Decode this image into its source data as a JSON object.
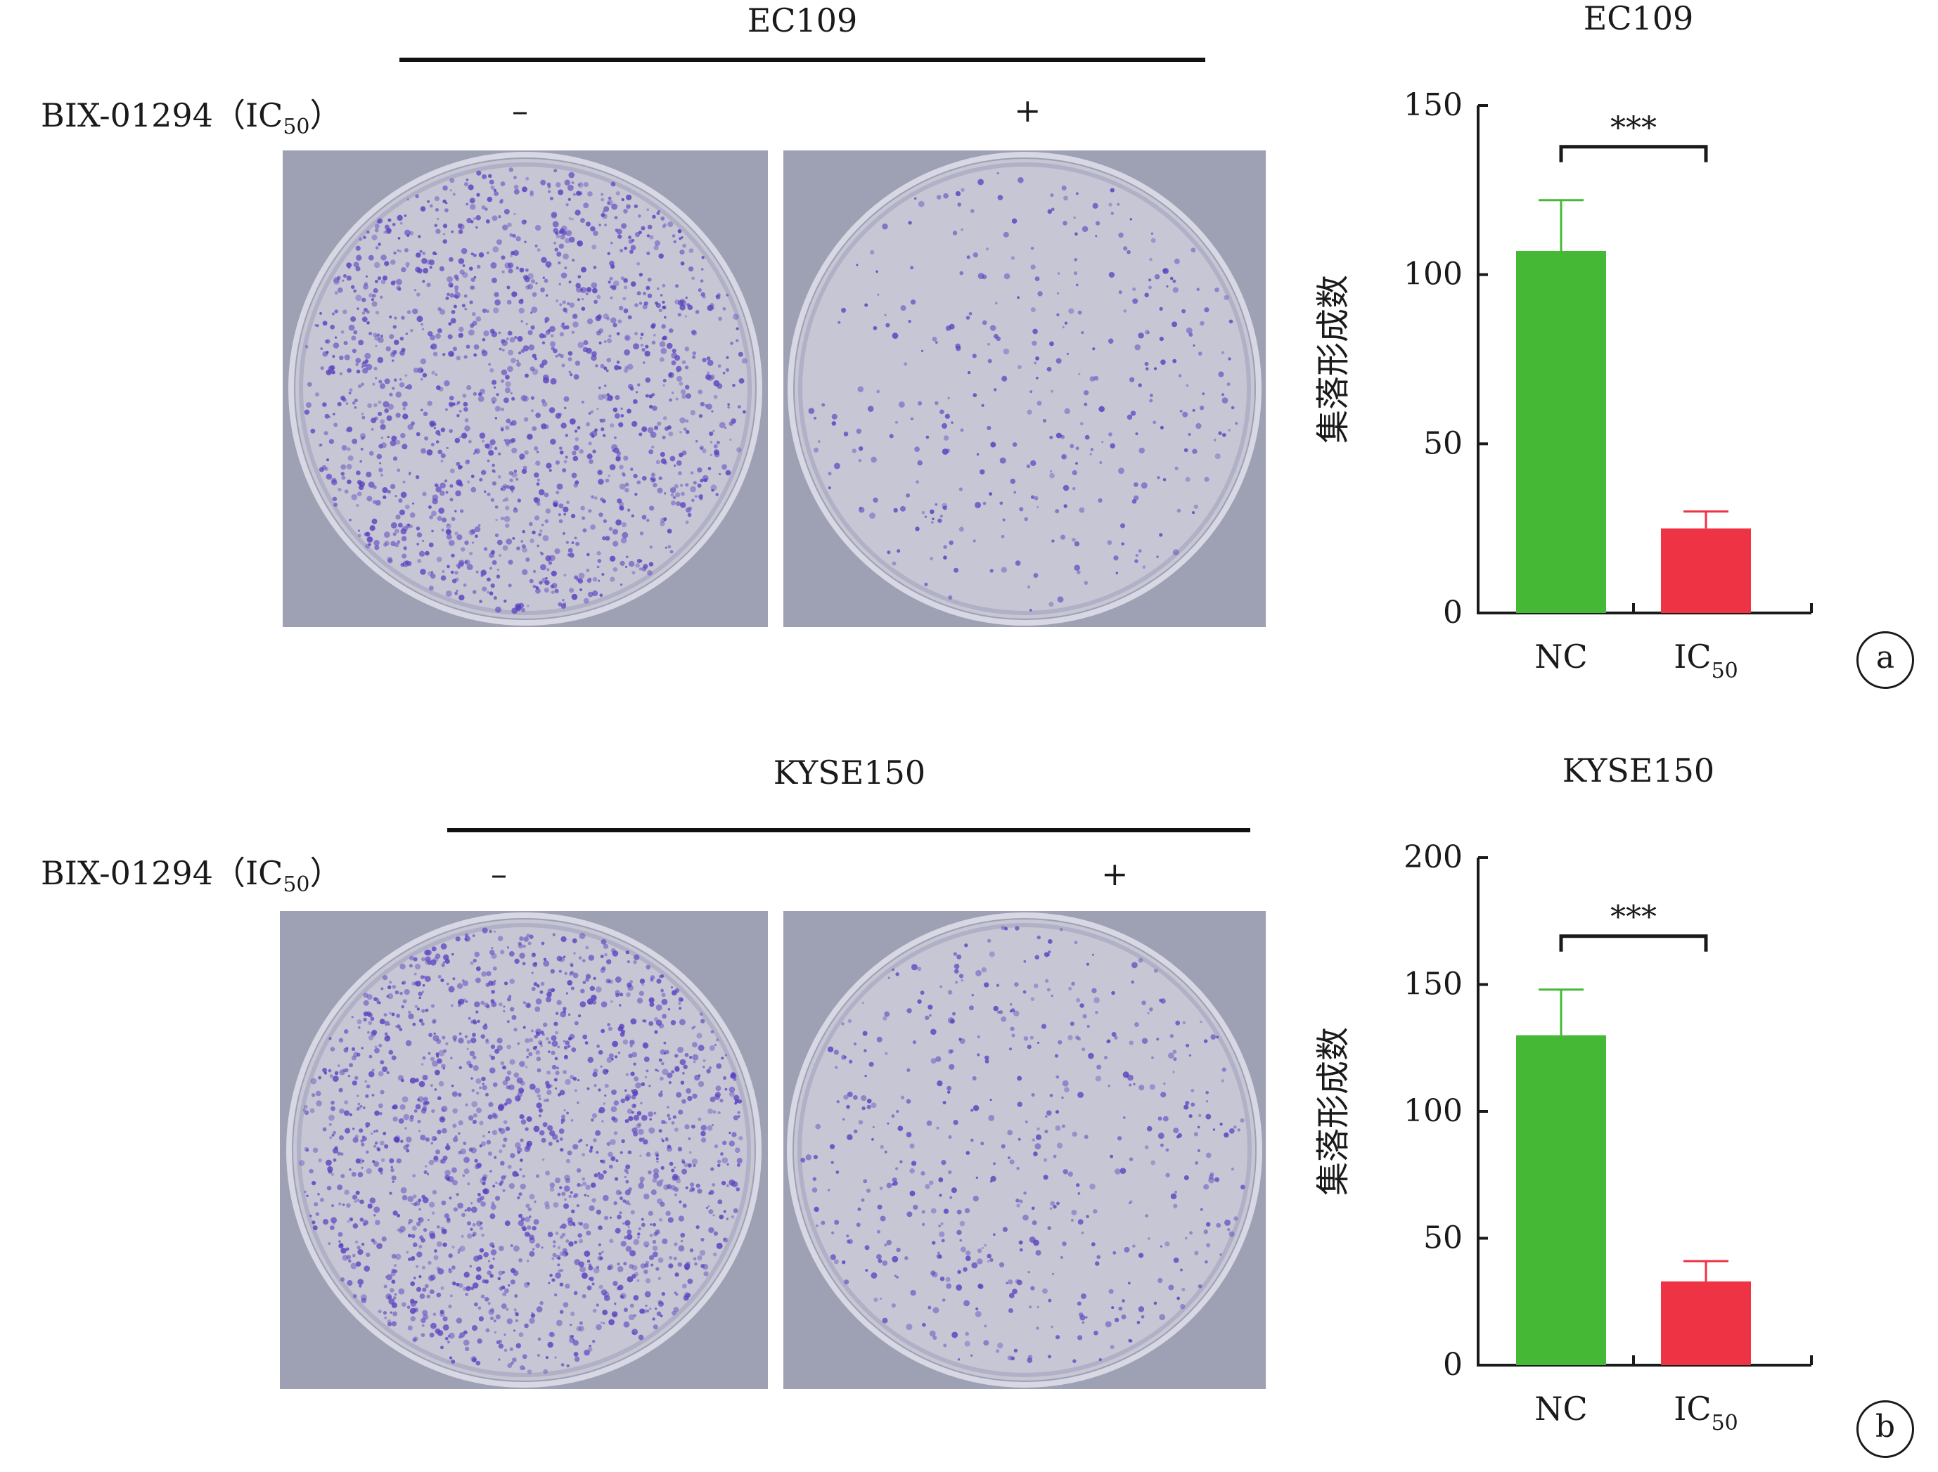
{
  "panels": [
    {
      "id": "a",
      "cell_line": "EC109",
      "treatment_label": "BIX-01294（IC",
      "treatment_sub": "50",
      "treatment_suffix": "）",
      "minus_sign": "–",
      "plus_sign": "+",
      "panel_letter": "a",
      "plate_minus_density": 0.85,
      "plate_plus_density": 0.2
    },
    {
      "id": "b",
      "cell_line": "KYSE150",
      "treatment_label": "BIX-01294（IC",
      "treatment_sub": "50",
      "treatment_suffix": "）",
      "minus_sign": "–",
      "plus_sign": "+",
      "panel_letter": "b",
      "plate_minus_density": 0.95,
      "plate_plus_density": 0.3
    }
  ],
  "colors": {
    "nc": "#45b935",
    "ic50": "#ee3344",
    "axis": "#1a1a1a",
    "stain": "#5a40c0"
  },
  "chart_data": [
    {
      "type": "bar",
      "title": "EC109",
      "ylabel": "集落形成数",
      "xlabel": "",
      "categories": [
        "NC",
        "IC50"
      ],
      "category_labels": [
        {
          "main": "NC",
          "sub": ""
        },
        {
          "main": "IC",
          "sub": "50"
        }
      ],
      "values": [
        107,
        25
      ],
      "errors": [
        15,
        5
      ],
      "ylim": [
        0,
        150
      ],
      "yticks": [
        0,
        50,
        100,
        150
      ],
      "significance": "***",
      "legend": "none",
      "grid": false
    },
    {
      "type": "bar",
      "title": "KYSE150",
      "ylabel": "集落形成数",
      "xlabel": "",
      "categories": [
        "NC",
        "IC50"
      ],
      "category_labels": [
        {
          "main": "NC",
          "sub": ""
        },
        {
          "main": "IC",
          "sub": "50"
        }
      ],
      "values": [
        130,
        33
      ],
      "errors": [
        18,
        8
      ],
      "ylim": [
        0,
        200
      ],
      "yticks": [
        0,
        50,
        100,
        150,
        200
      ],
      "significance": "***",
      "legend": "none",
      "grid": false
    }
  ]
}
